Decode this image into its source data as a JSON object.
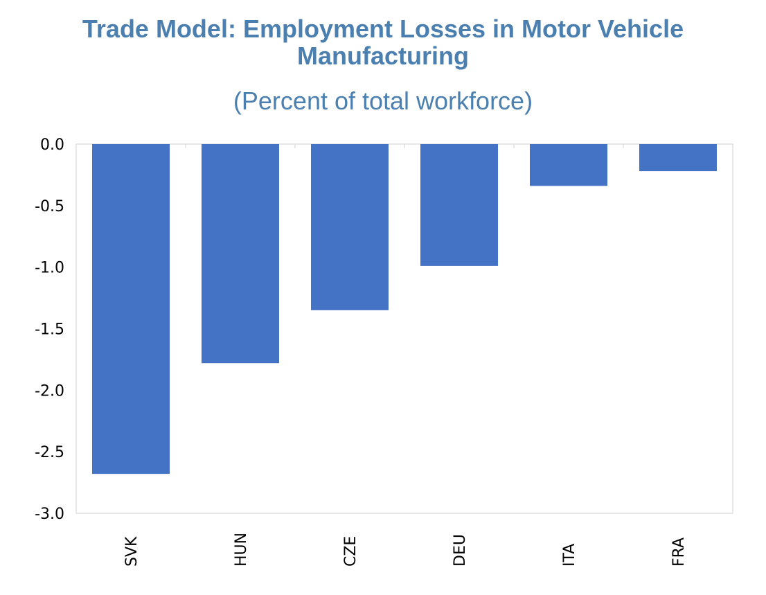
{
  "chart_data": {
    "type": "bar",
    "title": "Trade Model: Employment Losses in Motor Vehicle Manufacturing",
    "subtitle": "(Percent of total workforce)",
    "xlabel": "",
    "ylabel": "",
    "categories": [
      "SVK",
      "HUN",
      "CZE",
      "DEU",
      "ITA",
      "FRA"
    ],
    "values": [
      -2.68,
      -1.78,
      -1.35,
      -0.99,
      -0.34,
      -0.22
    ],
    "ylim": [
      -3.0,
      0.0
    ],
    "yticks": [
      0.0,
      -0.5,
      -1.0,
      -1.5,
      -2.0,
      -2.5,
      -3.0
    ],
    "ytick_labels": [
      "0.0",
      "-0.5",
      "-1.0",
      "-1.5",
      "-2.0",
      "-2.5",
      "-3.0"
    ],
    "grid": false,
    "bar_color": "#4472c4",
    "title_color": "#4a7fb0",
    "axis_color": "#d9d9d9",
    "legend": "none"
  }
}
